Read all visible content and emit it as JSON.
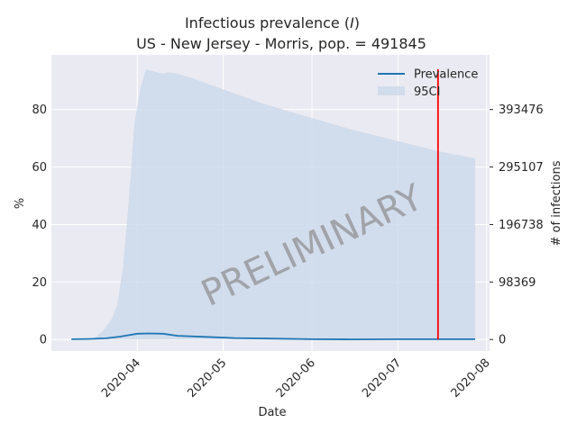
{
  "chart_data": {
    "type": "line",
    "title_line1_prefix": "Infectious prevalence (",
    "title_line1_var": "I",
    "title_line1_suffix": ")",
    "title_line2": "US - New Jersey - Morris, pop. = 491845",
    "xlabel": "Date",
    "ylabel": "%",
    "ylabel_right": "# of infections",
    "xlim": [
      "2020-03-02",
      "2020-08-02"
    ],
    "ylim": [
      -4,
      99
    ],
    "x_ticks": [
      {
        "date": "2020-04-01",
        "label": "2020-04"
      },
      {
        "date": "2020-05-01",
        "label": "2020-05"
      },
      {
        "date": "2020-06-01",
        "label": "2020-06"
      },
      {
        "date": "2020-07-01",
        "label": "2020-07"
      },
      {
        "date": "2020-08-01",
        "label": "2020-08"
      }
    ],
    "y_ticks": [
      0,
      20,
      40,
      60,
      80
    ],
    "y_right_ticks": [
      {
        "value": 0,
        "label": "0"
      },
      {
        "value": 20,
        "label": "98369"
      },
      {
        "value": 40,
        "label": "196738"
      },
      {
        "value": 60,
        "label": "295107"
      },
      {
        "value": 80,
        "label": "393476"
      }
    ],
    "grid": true,
    "legend_position": "top-right",
    "colors": {
      "background": "#eaeaf2",
      "grid": "#ffffff",
      "line": "#1f77b4",
      "band": "#c8d7ea",
      "vline": "#ff0000",
      "watermark": "#8c8c8c"
    },
    "series": [
      {
        "name": "Prevalence",
        "dates": [
          "2020-03-09",
          "2020-03-15",
          "2020-03-21",
          "2020-03-26",
          "2020-04-01",
          "2020-04-05",
          "2020-04-10",
          "2020-04-15",
          "2020-04-25",
          "2020-05-05",
          "2020-05-20",
          "2020-06-01",
          "2020-06-15",
          "2020-07-01",
          "2020-07-15",
          "2020-07-28"
        ],
        "values": [
          0.1,
          0.2,
          0.4,
          1.0,
          2.0,
          2.1,
          2.0,
          1.3,
          0.9,
          0.5,
          0.3,
          0.1,
          0.05,
          0.1,
          0.1,
          0.1
        ]
      }
    ],
    "band": {
      "name": "95CI",
      "dates": [
        "2020-03-09",
        "2020-03-17",
        "2020-03-20",
        "2020-03-23",
        "2020-03-25",
        "2020-03-27",
        "2020-03-29",
        "2020-03-31",
        "2020-04-02",
        "2020-04-04",
        "2020-04-06",
        "2020-04-08",
        "2020-04-10",
        "2020-04-12",
        "2020-04-15",
        "2020-04-20",
        "2020-05-01",
        "2020-05-15",
        "2020-06-01",
        "2020-06-15",
        "2020-07-01",
        "2020-07-15",
        "2020-07-28"
      ],
      "lower": [
        0,
        0,
        0,
        0,
        0,
        0,
        0,
        0,
        0,
        0,
        0,
        0,
        0,
        0,
        0,
        0,
        0,
        0,
        0,
        0,
        0,
        0,
        0
      ],
      "upper": [
        0,
        0.5,
        3,
        7,
        12,
        25,
        48,
        75,
        87,
        94,
        93.5,
        93,
        92.5,
        93,
        92.5,
        91,
        87,
        82,
        77,
        73,
        69,
        65.5,
        63
      ]
    },
    "vline_date": "2020-07-15",
    "vline_values": [
      0,
      94
    ],
    "watermark": "PRELIMINARY"
  }
}
